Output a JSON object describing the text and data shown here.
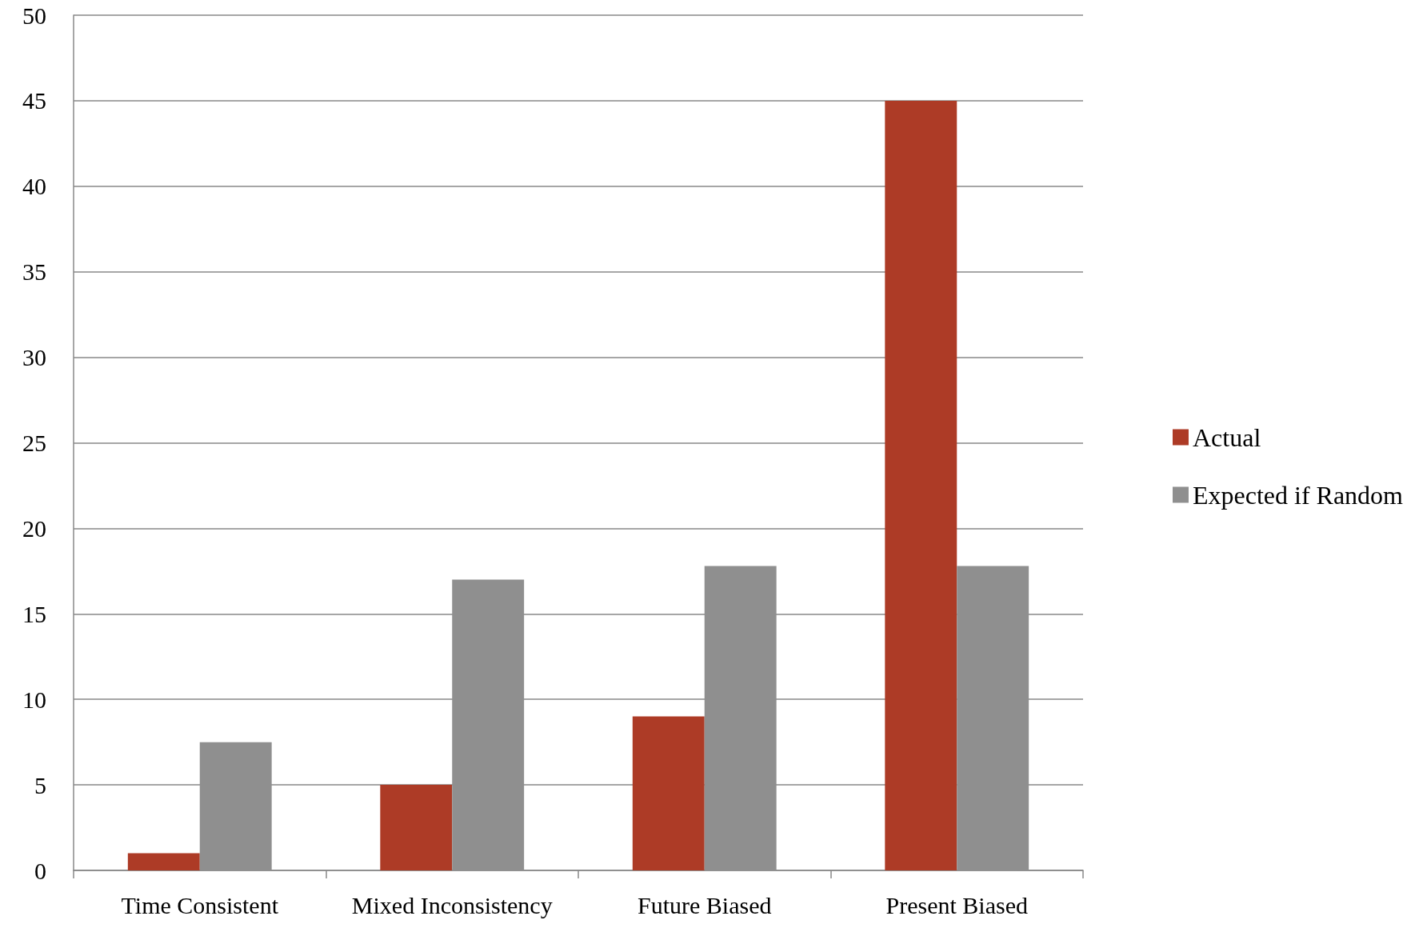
{
  "chart_data": {
    "type": "bar",
    "categories": [
      "Time Consistent",
      "Mixed Inconsistency",
      "Future Biased",
      "Present Biased"
    ],
    "series": [
      {
        "name": "Actual",
        "color": "#ad3b26",
        "values": [
          1,
          5,
          9,
          45
        ]
      },
      {
        "name": "Expected if Random",
        "color": "#8f8f8f",
        "values": [
          7.5,
          17,
          17.8,
          17.8
        ]
      }
    ],
    "ylim": [
      0,
      50
    ],
    "yticks": [
      0,
      5,
      10,
      15,
      20,
      25,
      30,
      35,
      40,
      45,
      50
    ],
    "grid": "y",
    "legend": "right"
  }
}
